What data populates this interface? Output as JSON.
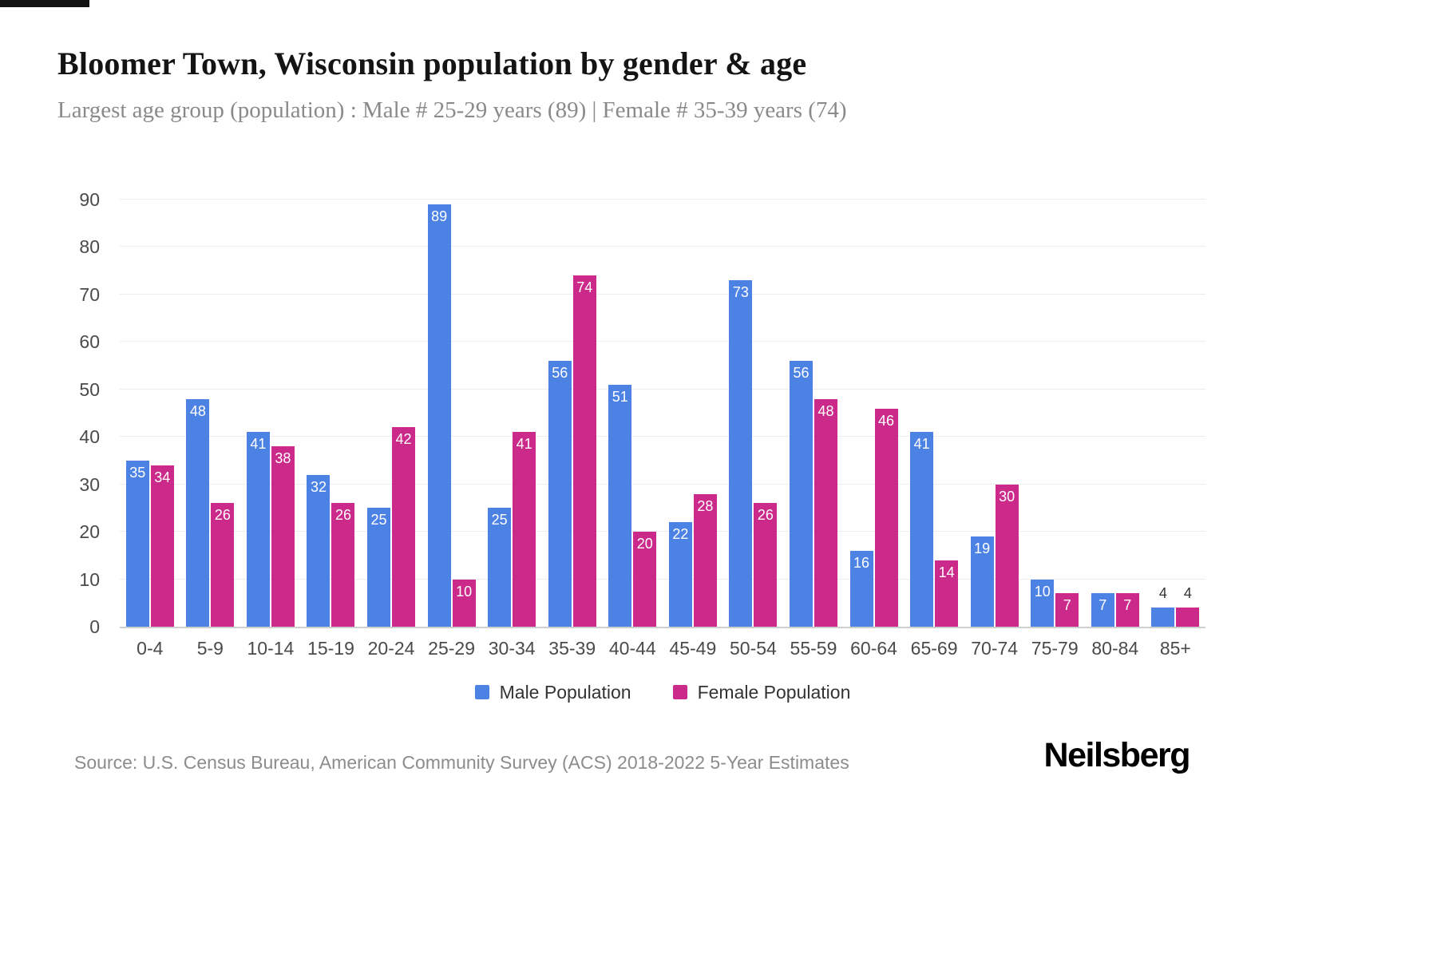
{
  "page": {
    "title": "Bloomer Town, Wisconsin population by gender & age",
    "subtitle": "Largest age group (population) : Male # 25-29 years (89) | Female # 35-39 years (74)",
    "source": "Source: U.S. Census Bureau, American Community Survey (ACS) 2018-2022 5-Year Estimates",
    "brand": "Neilsberg"
  },
  "colors": {
    "male": "#4d82e5",
    "female": "#cb2a8a",
    "label_inside": "#ffffff",
    "label_outside": "#333333",
    "gridline": "#ededed",
    "baseline": "#cfcfcf"
  },
  "chart_data": {
    "type": "bar",
    "title": "Bloomer Town, Wisconsin population by gender & age",
    "xlabel": "",
    "ylabel": "",
    "ylim": [
      0,
      90
    ],
    "yticks": [
      0,
      10,
      20,
      30,
      40,
      50,
      60,
      70,
      80,
      90
    ],
    "grid": true,
    "legend_position": "bottom",
    "categories": [
      "0-4",
      "5-9",
      "10-14",
      "15-19",
      "20-24",
      "25-29",
      "30-34",
      "35-39",
      "40-44",
      "45-49",
      "50-54",
      "55-59",
      "60-64",
      "65-69",
      "70-74",
      "75-79",
      "80-84",
      "85+"
    ],
    "series": [
      {
        "name": "Male Population",
        "color": "#4d82e5",
        "values": [
          35,
          48,
          41,
          32,
          25,
          89,
          25,
          56,
          51,
          22,
          73,
          56,
          16,
          41,
          19,
          10,
          7,
          4
        ]
      },
      {
        "name": "Female Population",
        "color": "#cb2a8a",
        "values": [
          34,
          26,
          38,
          26,
          42,
          10,
          41,
          74,
          20,
          28,
          26,
          48,
          46,
          14,
          30,
          7,
          7,
          4
        ]
      }
    ]
  }
}
